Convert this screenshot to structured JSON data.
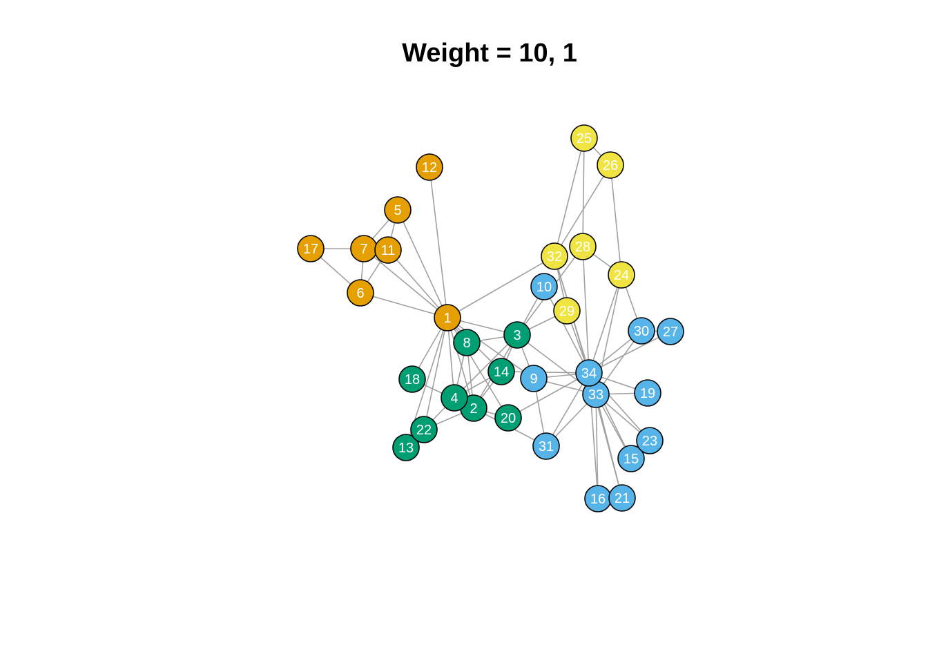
{
  "title": "Weight = 10, 1",
  "colors": {
    "orange": "#E69F00",
    "green": "#009E73",
    "blue": "#56B4E9",
    "yellow": "#F0E442",
    "edge": "#A0A0A0"
  },
  "graph": {
    "nodes": [
      {
        "id": "1",
        "group": "orange"
      },
      {
        "id": "2",
        "group": "green"
      },
      {
        "id": "3",
        "group": "green"
      },
      {
        "id": "4",
        "group": "green"
      },
      {
        "id": "5",
        "group": "orange"
      },
      {
        "id": "6",
        "group": "orange"
      },
      {
        "id": "7",
        "group": "orange"
      },
      {
        "id": "8",
        "group": "green"
      },
      {
        "id": "9",
        "group": "blue"
      },
      {
        "id": "10",
        "group": "blue"
      },
      {
        "id": "11",
        "group": "orange"
      },
      {
        "id": "12",
        "group": "orange"
      },
      {
        "id": "13",
        "group": "green"
      },
      {
        "id": "14",
        "group": "green"
      },
      {
        "id": "15",
        "group": "blue"
      },
      {
        "id": "16",
        "group": "blue"
      },
      {
        "id": "17",
        "group": "orange"
      },
      {
        "id": "18",
        "group": "green"
      },
      {
        "id": "19",
        "group": "blue"
      },
      {
        "id": "20",
        "group": "green"
      },
      {
        "id": "21",
        "group": "blue"
      },
      {
        "id": "22",
        "group": "green"
      },
      {
        "id": "23",
        "group": "blue"
      },
      {
        "id": "24",
        "group": "yellow"
      },
      {
        "id": "25",
        "group": "yellow"
      },
      {
        "id": "26",
        "group": "yellow"
      },
      {
        "id": "27",
        "group": "blue"
      },
      {
        "id": "28",
        "group": "yellow"
      },
      {
        "id": "29",
        "group": "yellow"
      },
      {
        "id": "30",
        "group": "blue"
      },
      {
        "id": "31",
        "group": "blue"
      },
      {
        "id": "32",
        "group": "yellow"
      },
      {
        "id": "33",
        "group": "blue"
      },
      {
        "id": "34",
        "group": "blue"
      }
    ],
    "edges": [
      [
        "1",
        "2"
      ],
      [
        "1",
        "3"
      ],
      [
        "1",
        "4"
      ],
      [
        "1",
        "5"
      ],
      [
        "1",
        "6"
      ],
      [
        "1",
        "7"
      ],
      [
        "1",
        "8"
      ],
      [
        "1",
        "9"
      ],
      [
        "1",
        "11"
      ],
      [
        "1",
        "12"
      ],
      [
        "1",
        "13"
      ],
      [
        "1",
        "14"
      ],
      [
        "1",
        "18"
      ],
      [
        "1",
        "20"
      ],
      [
        "1",
        "22"
      ],
      [
        "1",
        "32"
      ],
      [
        "2",
        "3"
      ],
      [
        "2",
        "4"
      ],
      [
        "2",
        "8"
      ],
      [
        "2",
        "14"
      ],
      [
        "2",
        "18"
      ],
      [
        "2",
        "20"
      ],
      [
        "2",
        "22"
      ],
      [
        "2",
        "31"
      ],
      [
        "3",
        "4"
      ],
      [
        "3",
        "8"
      ],
      [
        "3",
        "9"
      ],
      [
        "3",
        "10"
      ],
      [
        "3",
        "14"
      ],
      [
        "3",
        "28"
      ],
      [
        "3",
        "29"
      ],
      [
        "3",
        "33"
      ],
      [
        "4",
        "8"
      ],
      [
        "4",
        "13"
      ],
      [
        "4",
        "14"
      ],
      [
        "5",
        "7"
      ],
      [
        "5",
        "11"
      ],
      [
        "6",
        "7"
      ],
      [
        "6",
        "11"
      ],
      [
        "6",
        "17"
      ],
      [
        "7",
        "17"
      ],
      [
        "9",
        "31"
      ],
      [
        "9",
        "33"
      ],
      [
        "9",
        "34"
      ],
      [
        "10",
        "34"
      ],
      [
        "14",
        "34"
      ],
      [
        "15",
        "33"
      ],
      [
        "15",
        "34"
      ],
      [
        "16",
        "33"
      ],
      [
        "16",
        "34"
      ],
      [
        "19",
        "33"
      ],
      [
        "19",
        "34"
      ],
      [
        "20",
        "34"
      ],
      [
        "21",
        "33"
      ],
      [
        "21",
        "34"
      ],
      [
        "23",
        "33"
      ],
      [
        "23",
        "34"
      ],
      [
        "24",
        "26"
      ],
      [
        "24",
        "28"
      ],
      [
        "24",
        "30"
      ],
      [
        "24",
        "33"
      ],
      [
        "24",
        "34"
      ],
      [
        "25",
        "26"
      ],
      [
        "25",
        "28"
      ],
      [
        "25",
        "32"
      ],
      [
        "26",
        "32"
      ],
      [
        "27",
        "30"
      ],
      [
        "27",
        "34"
      ],
      [
        "28",
        "34"
      ],
      [
        "29",
        "32"
      ],
      [
        "29",
        "34"
      ],
      [
        "30",
        "33"
      ],
      [
        "30",
        "34"
      ],
      [
        "31",
        "33"
      ],
      [
        "31",
        "34"
      ],
      [
        "32",
        "33"
      ],
      [
        "32",
        "34"
      ],
      [
        "33",
        "34"
      ]
    ]
  }
}
